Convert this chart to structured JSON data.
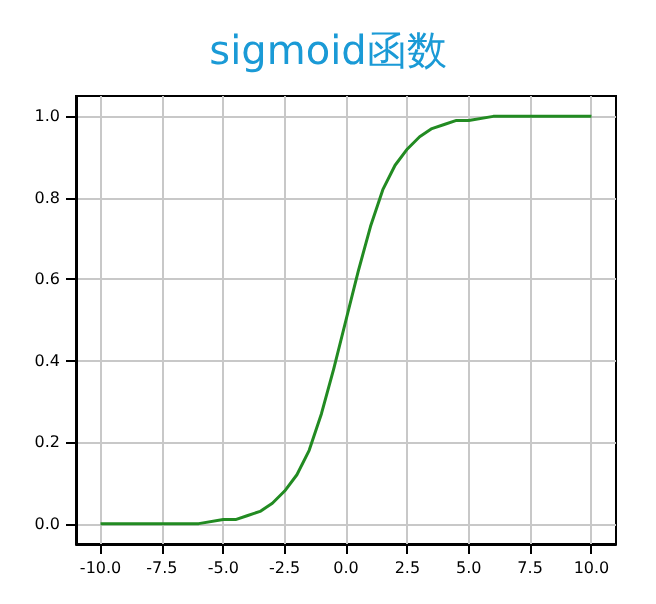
{
  "chart_data": {
    "type": "line",
    "title": "sigmoid函数",
    "x": [
      -10,
      -9,
      -8,
      -7,
      -6,
      -5,
      -4.5,
      -4,
      -3.5,
      -3,
      -2.5,
      -2,
      -1.5,
      -1,
      -0.5,
      0,
      0.5,
      1,
      1.5,
      2,
      2.5,
      3,
      3.5,
      4,
      4.5,
      5,
      6,
      7,
      8,
      9,
      10
    ],
    "series": [
      {
        "color": "#228b22",
        "values": [
          0,
          0,
          0,
          0,
          0,
          0.01,
          0.01,
          0.02,
          0.03,
          0.05,
          0.08,
          0.12,
          0.18,
          0.27,
          0.38,
          0.5,
          0.62,
          0.73,
          0.82,
          0.88,
          0.92,
          0.95,
          0.97,
          0.98,
          0.99,
          0.99,
          1,
          1,
          1,
          1,
          1
        ]
      }
    ],
    "xlim": [
      -11,
      11
    ],
    "xticks": [
      {
        "value": -10,
        "label": "-10.0"
      },
      {
        "value": -7.5,
        "label": "-7.5"
      },
      {
        "value": -5,
        "label": "-5.0"
      },
      {
        "value": -2.5,
        "label": "-2.5"
      },
      {
        "value": 0,
        "label": "0.0"
      },
      {
        "value": 2.5,
        "label": "2.5"
      },
      {
        "value": 5,
        "label": "5.0"
      },
      {
        "value": 7.5,
        "label": "7.5"
      },
      {
        "value": 10,
        "label": "10.0"
      }
    ],
    "ylim": [
      -0.05,
      1.05
    ],
    "yticks": [
      {
        "value": 0,
        "label": "0.0"
      },
      {
        "value": 0.2,
        "label": "0.2"
      },
      {
        "value": 0.4,
        "label": "0.4"
      },
      {
        "value": 0.6,
        "label": "0.6"
      },
      {
        "value": 0.8,
        "label": "0.8"
      },
      {
        "value": 1,
        "label": "1.0"
      }
    ],
    "grid": true,
    "marker": "none",
    "line_style": "solid"
  }
}
